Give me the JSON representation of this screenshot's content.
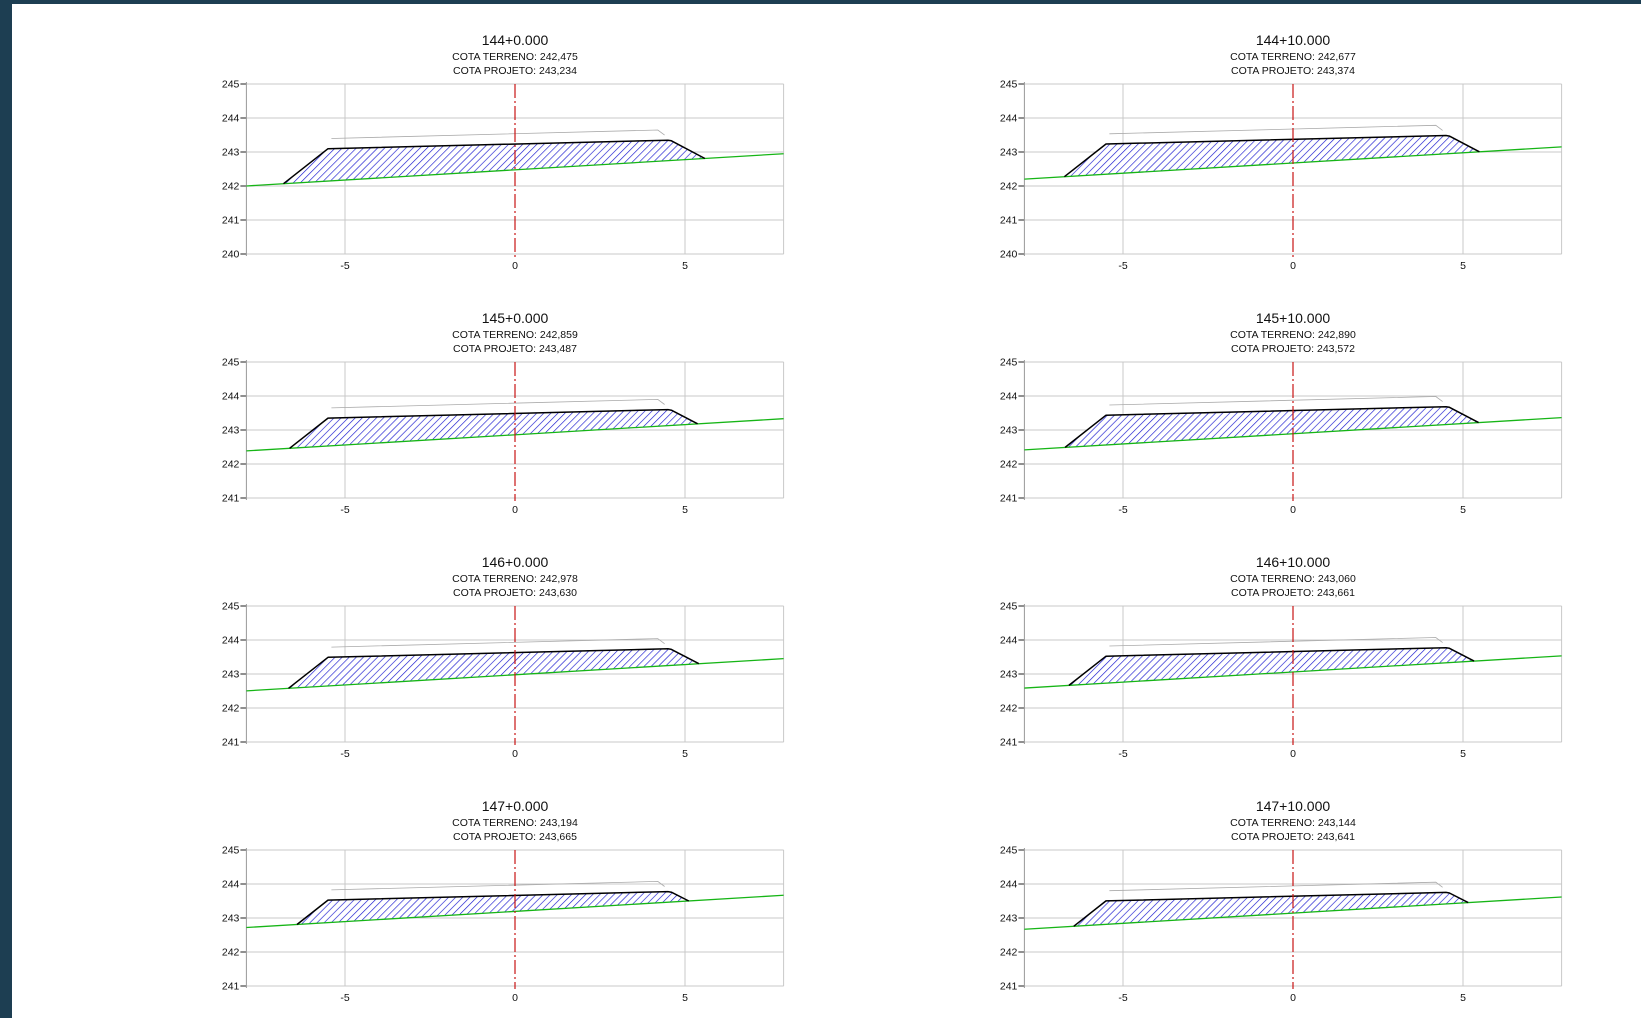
{
  "drawing": {
    "terrain_label": "COTA TERRENO",
    "design_label": "COTA PROJETO",
    "colors": {
      "terrain": "#16b516",
      "centerline": "#c81414",
      "fill_hatch": "#1a1ad0",
      "platform": "#000000",
      "grid": "#c8c8c8",
      "ghost_platform": "#aaaaaa"
    }
  },
  "sections": [
    {
      "station": "144+0.000",
      "terrain_elevation": "242,475",
      "design_elevation": "243,234",
      "y_ticks": [
        "245",
        "244",
        "243",
        "242",
        "241",
        "240"
      ],
      "x_ticks": [
        "-5",
        "0",
        "5"
      ]
    },
    {
      "station": "144+10.000",
      "terrain_elevation": "242,677",
      "design_elevation": "243,374",
      "y_ticks": [
        "245",
        "244",
        "243",
        "242",
        "241",
        "240"
      ],
      "x_ticks": [
        "-5",
        "0",
        "5"
      ]
    },
    {
      "station": "145+0.000",
      "terrain_elevation": "242,859",
      "design_elevation": "243,487",
      "y_ticks": [
        "245",
        "244",
        "243",
        "242",
        "241"
      ],
      "x_ticks": [
        "-5",
        "0",
        "5"
      ]
    },
    {
      "station": "145+10.000",
      "terrain_elevation": "242,890",
      "design_elevation": "243,572",
      "y_ticks": [
        "245",
        "244",
        "243",
        "242",
        "241"
      ],
      "x_ticks": [
        "-5",
        "0",
        "5"
      ]
    },
    {
      "station": "146+0.000",
      "terrain_elevation": "242,978",
      "design_elevation": "243,630",
      "y_ticks": [
        "245",
        "244",
        "243",
        "242",
        "241"
      ],
      "x_ticks": [
        "-5",
        "0",
        "5"
      ]
    },
    {
      "station": "146+10.000",
      "terrain_elevation": "243,060",
      "design_elevation": "243,661",
      "y_ticks": [
        "245",
        "244",
        "243",
        "242",
        "241"
      ],
      "x_ticks": [
        "-5",
        "0",
        "5"
      ]
    },
    {
      "station": "147+0.000",
      "terrain_elevation": "243,194",
      "design_elevation": "243,665",
      "y_ticks": [
        "245",
        "244",
        "243",
        "242",
        "241"
      ],
      "x_ticks": [
        "-5",
        "0",
        "5"
      ]
    },
    {
      "station": "147+10.000",
      "terrain_elevation": "243,144",
      "design_elevation": "243,641",
      "y_ticks": [
        "245",
        "244",
        "243",
        "242",
        "241"
      ],
      "x_ticks": [
        "-5",
        "0",
        "5"
      ]
    }
  ]
}
